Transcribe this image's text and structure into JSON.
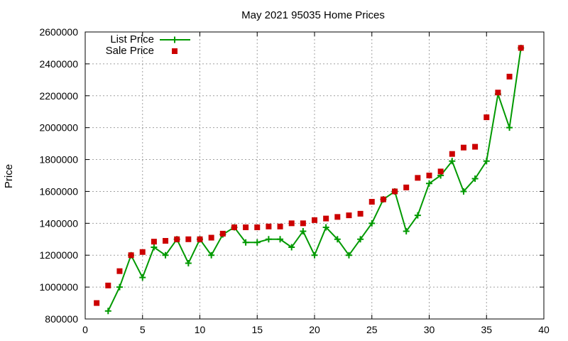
{
  "chart_data": {
    "type": "line",
    "title": "May 2021 95035 Home Prices",
    "xlabel": "",
    "ylabel": "Price",
    "xlim": [
      0,
      40
    ],
    "ylim": [
      800000,
      2600000
    ],
    "xticks": [
      0,
      5,
      10,
      15,
      20,
      25,
      30,
      35,
      40
    ],
    "yticks": [
      800000,
      1000000,
      1200000,
      1400000,
      1600000,
      1800000,
      2000000,
      2200000,
      2400000,
      2600000
    ],
    "xtick_labels": [
      "0",
      "5",
      "10",
      "15",
      "20",
      "25",
      "30",
      "35",
      "40"
    ],
    "ytick_labels": [
      "800000",
      "1000000",
      "1200000",
      "1400000",
      "1600000",
      "1800000",
      "2000000",
      "2200000",
      "2400000",
      "2600000"
    ],
    "grid": true,
    "legend_position": "top-left",
    "series": [
      {
        "name": "List Price",
        "style": "line-with-plus-markers",
        "color": "#009900",
        "x": [
          2,
          3,
          4,
          5,
          6,
          7,
          8,
          9,
          10,
          11,
          12,
          13,
          14,
          15,
          16,
          17,
          18,
          19,
          20,
          21,
          22,
          23,
          24,
          25,
          26,
          27,
          28,
          29,
          30,
          31,
          32,
          33,
          34,
          35,
          36,
          37,
          38
        ],
        "values": [
          850000,
          1000000,
          1200000,
          1060000,
          1250000,
          1200000,
          1300000,
          1150000,
          1300000,
          1200000,
          1330000,
          1375000,
          1280000,
          1280000,
          1300000,
          1300000,
          1250000,
          1350000,
          1200000,
          1375000,
          1300000,
          1200000,
          1300000,
          1400000,
          1550000,
          1600000,
          1350000,
          1450000,
          1650000,
          1700000,
          1790000,
          1600000,
          1680000,
          1790000,
          2210000,
          2000000,
          2500000
        ]
      },
      {
        "name": "Sale Price",
        "style": "square-markers",
        "color": "#cc0000",
        "x": [
          1,
          2,
          3,
          4,
          5,
          6,
          7,
          8,
          9,
          10,
          11,
          12,
          13,
          14,
          15,
          16,
          17,
          18,
          19,
          20,
          21,
          22,
          23,
          24,
          25,
          26,
          27,
          28,
          29,
          30,
          31,
          32,
          33,
          34,
          35,
          36,
          37,
          38
        ],
        "values": [
          900000,
          1010000,
          1100000,
          1200000,
          1220000,
          1285000,
          1290000,
          1300000,
          1300000,
          1300000,
          1310000,
          1335000,
          1375000,
          1375000,
          1375000,
          1380000,
          1380000,
          1400000,
          1400000,
          1420000,
          1430000,
          1440000,
          1450000,
          1460000,
          1535000,
          1550000,
          1600000,
          1625000,
          1685000,
          1700000,
          1725000,
          1835000,
          1875000,
          1880000,
          2065000,
          2220000,
          2320000,
          2500000
        ]
      }
    ]
  }
}
